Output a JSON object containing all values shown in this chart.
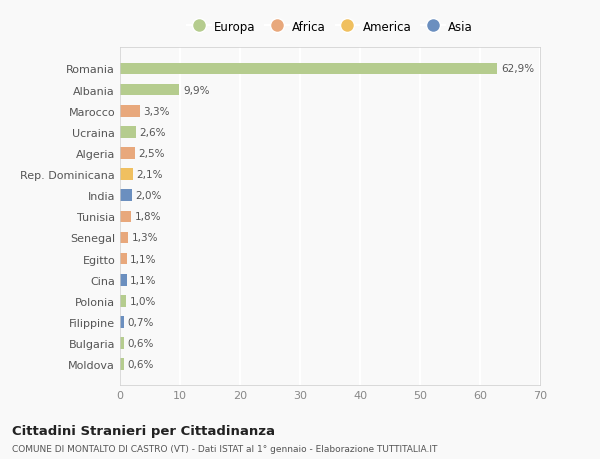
{
  "countries": [
    "Romania",
    "Albania",
    "Marocco",
    "Ucraina",
    "Algeria",
    "Rep. Dominicana",
    "India",
    "Tunisia",
    "Senegal",
    "Egitto",
    "Cina",
    "Polonia",
    "Filippine",
    "Bulgaria",
    "Moldova"
  ],
  "values": [
    62.9,
    9.9,
    3.3,
    2.6,
    2.5,
    2.1,
    2.0,
    1.8,
    1.3,
    1.1,
    1.1,
    1.0,
    0.7,
    0.6,
    0.6
  ],
  "labels": [
    "62,9%",
    "9,9%",
    "3,3%",
    "2,6%",
    "2,5%",
    "2,1%",
    "2,0%",
    "1,8%",
    "1,3%",
    "1,1%",
    "1,1%",
    "1,0%",
    "0,7%",
    "0,6%",
    "0,6%"
  ],
  "continents": [
    "Europa",
    "Europa",
    "Africa",
    "Europa",
    "Africa",
    "America",
    "Asia",
    "Africa",
    "Africa",
    "Africa",
    "Asia",
    "Europa",
    "Asia",
    "Europa",
    "Europa"
  ],
  "colors": {
    "Europa": "#b5cc8e",
    "Africa": "#e8a87c",
    "America": "#f0c060",
    "Asia": "#6b8fbf"
  },
  "xlim": [
    0,
    70
  ],
  "xticks": [
    0,
    10,
    20,
    30,
    40,
    50,
    60,
    70
  ],
  "title": "Cittadini Stranieri per Cittadinanza",
  "subtitle": "COMUNE DI MONTALTO DI CASTRO (VT) - Dati ISTAT al 1° gennaio - Elaborazione TUTTITALIA.IT",
  "background_color": "#f9f9f9",
  "grid_color": "#e8e8e8",
  "bar_height": 0.55,
  "legend_order": [
    "Europa",
    "Africa",
    "America",
    "Asia"
  ]
}
